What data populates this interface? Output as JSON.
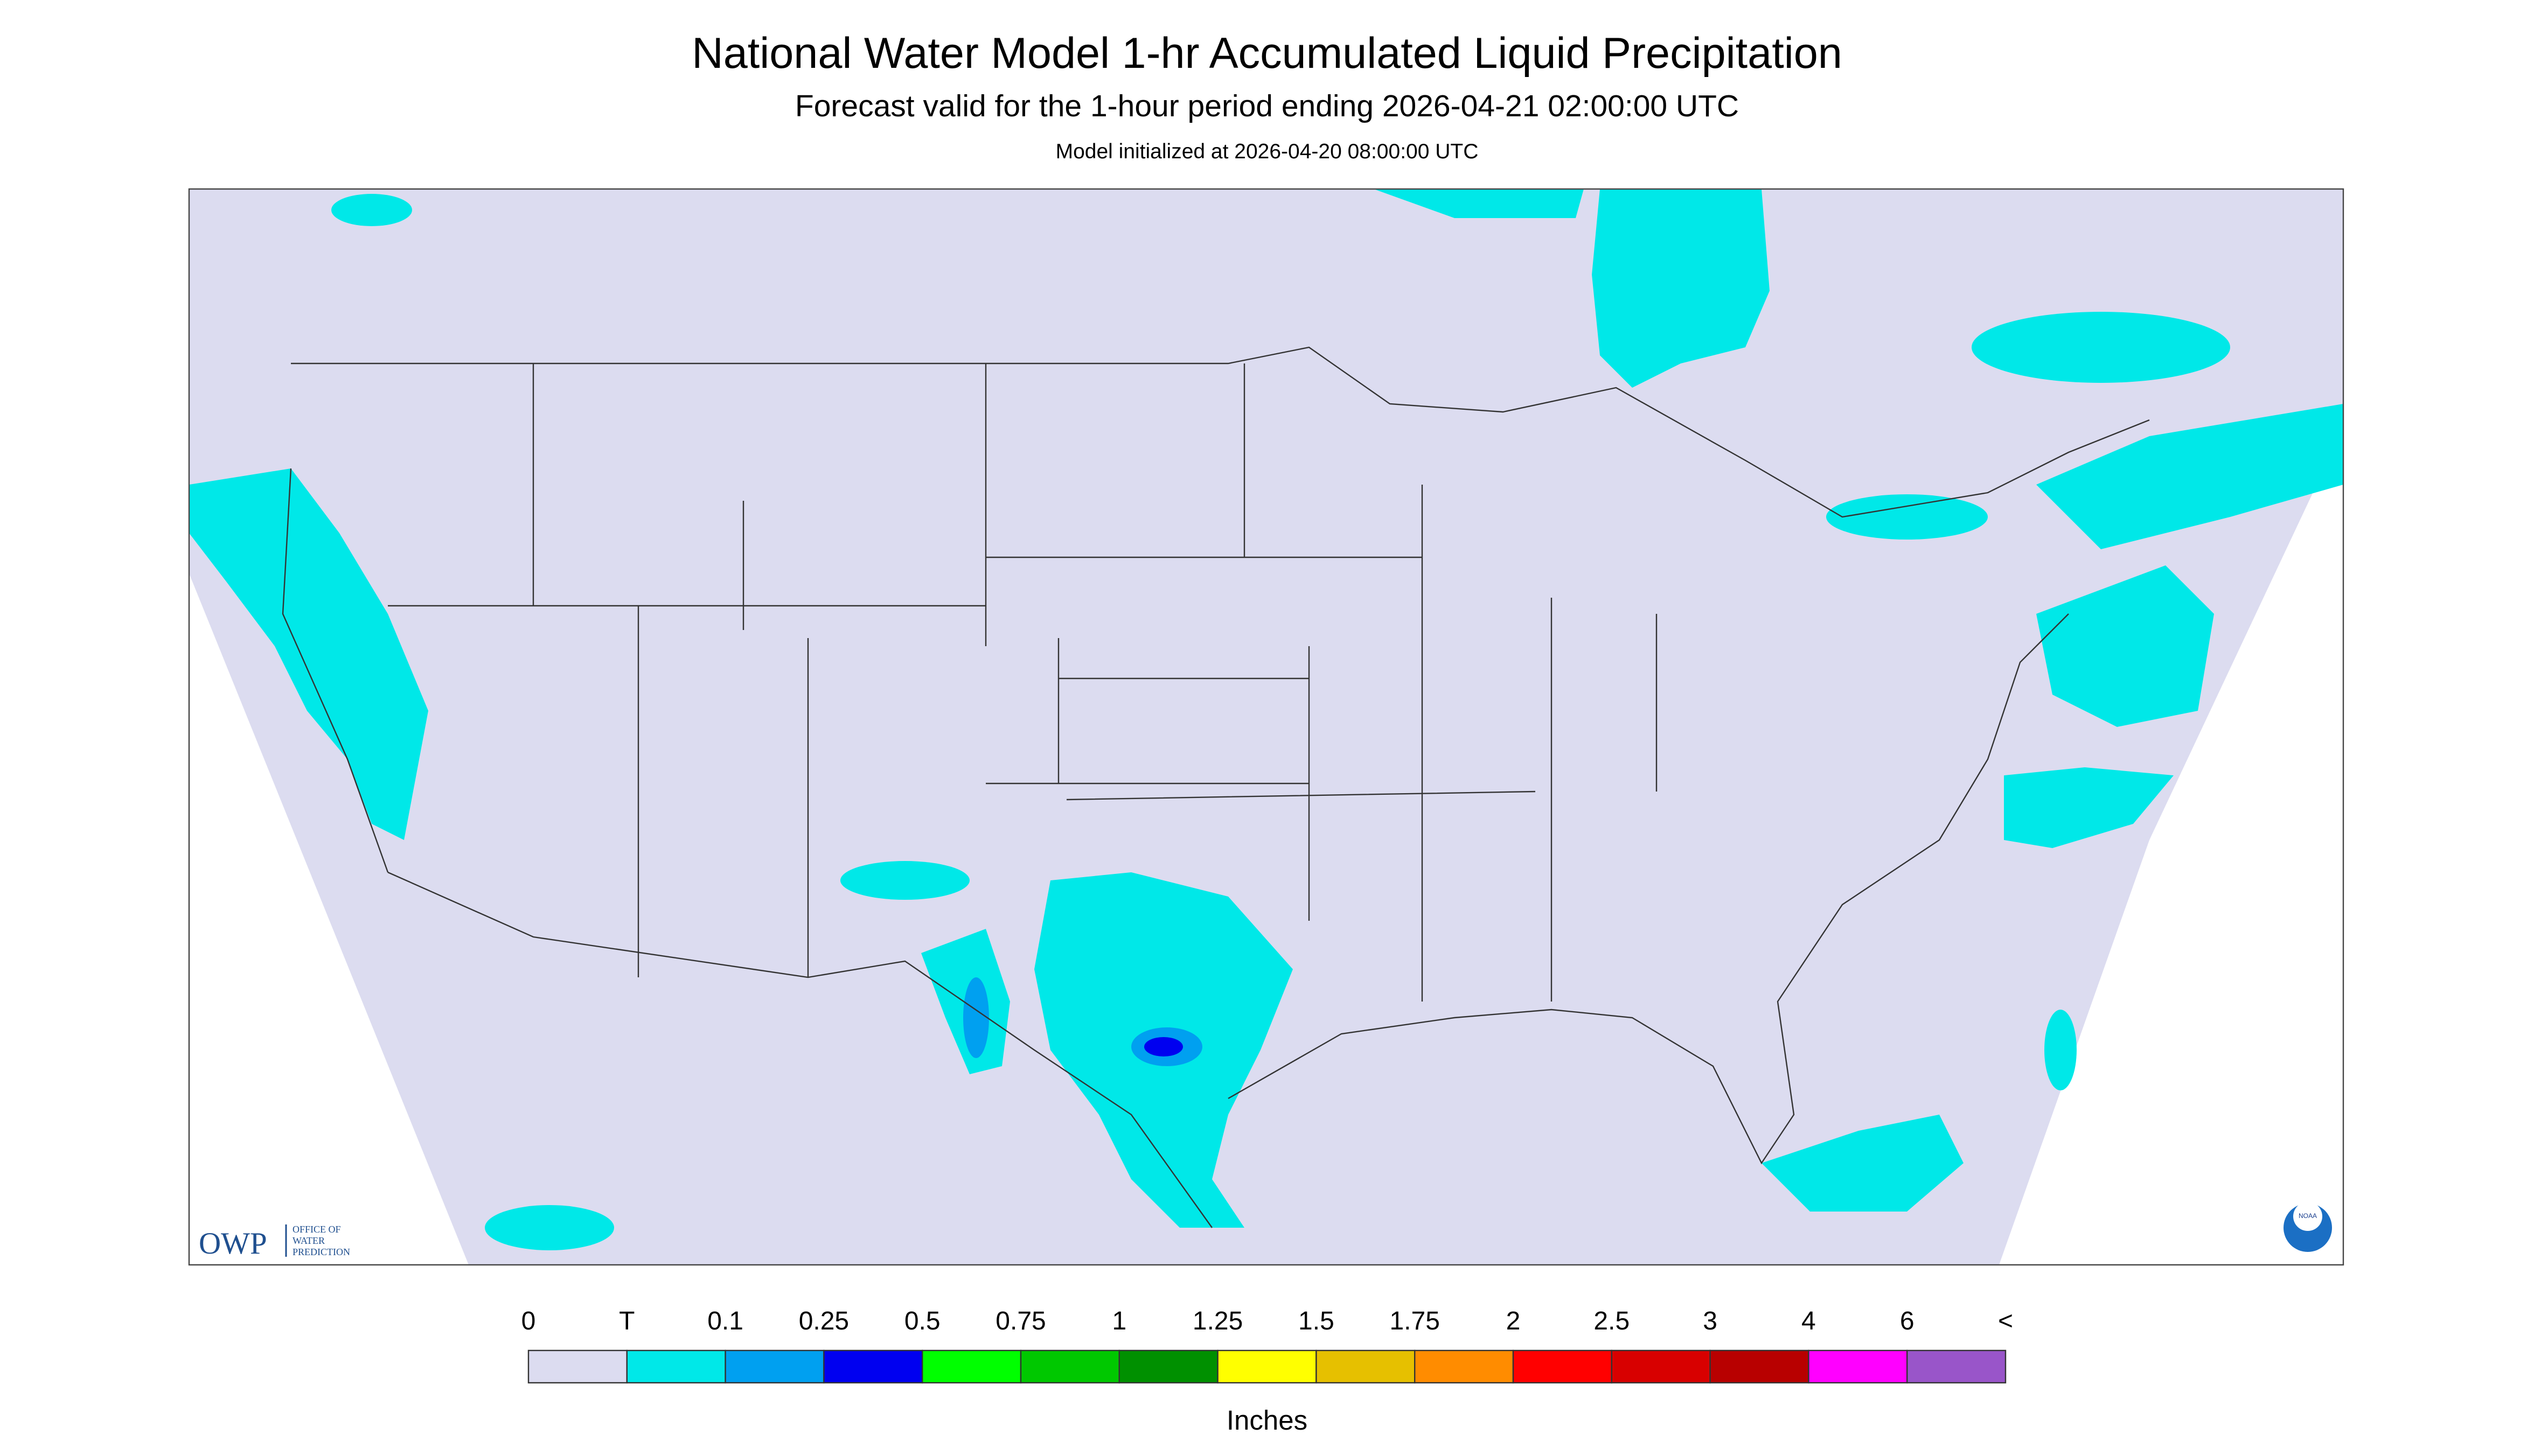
{
  "header": {
    "title": "National Water Model 1-hr Accumulated Liquid Precipitation",
    "subtitle": "Forecast valid for the 1-hour period ending 2026-04-21 02:00:00 UTC",
    "init": "Model initialized at 2026-04-20 08:00:00 UTC"
  },
  "logos": {
    "owp": "OWP",
    "owp_text": [
      "OFFICE OF",
      "WATER",
      "PREDICTION"
    ],
    "noaa": "NOAA"
  },
  "legend": {
    "labels": [
      "0",
      "T",
      "0.1",
      "0.25",
      "0.5",
      "0.75",
      "1",
      "1.25",
      "1.5",
      "1.75",
      "2",
      "2.5",
      "3",
      "4",
      "6",
      "<"
    ],
    "colors": [
      "#dcdcf0",
      "#00e8e8",
      "#00a0f0",
      "#0000f0",
      "#00ff00",
      "#00c800",
      "#009000",
      "#ffff00",
      "#e6c000",
      "#ff8c00",
      "#ff0000",
      "#d80000",
      "#b80000",
      "#ff00ff",
      "#9955c9"
    ],
    "unit": "Inches"
  }
}
